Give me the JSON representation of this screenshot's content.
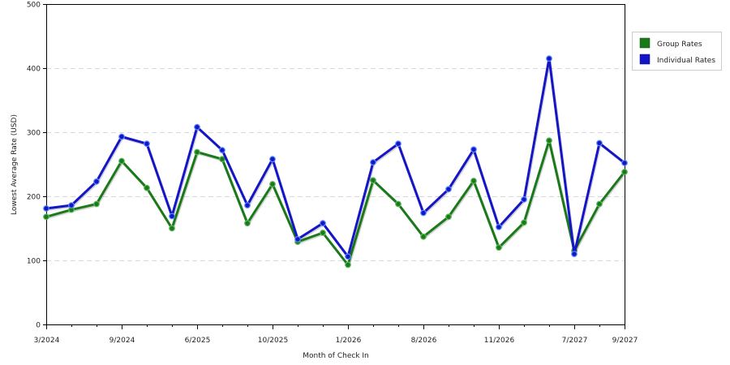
{
  "chart_data": {
    "type": "line",
    "xlabel": "Month of Check In",
    "ylabel": "Lowest Average Rate (USD)",
    "ylim": [
      0,
      500
    ],
    "yticks": [
      0,
      100,
      200,
      300,
      400,
      500
    ],
    "x_tick_labels": [
      {
        "label": "3/2024",
        "index": 0
      },
      {
        "label": "9/2024",
        "index": 3
      },
      {
        "label": "6/2025",
        "index": 6
      },
      {
        "label": "10/2025",
        "index": 9
      },
      {
        "label": "1/2026",
        "index": 12
      },
      {
        "label": "8/2026",
        "index": 15
      },
      {
        "label": "11/2026",
        "index": 18
      },
      {
        "label": "7/2027",
        "index": 21
      },
      {
        "label": "9/2027",
        "index": 23
      }
    ],
    "grid": "horizontal-dashed",
    "legend_position": "right",
    "series": [
      {
        "name": "Group Rates",
        "color": "#1a7a1a",
        "values": [
          168,
          179,
          188,
          255,
          213,
          150,
          269,
          258,
          158,
          219,
          129,
          143,
          93,
          225,
          188,
          137,
          168,
          224,
          120,
          159,
          287,
          115,
          188,
          238
        ]
      },
      {
        "name": "Individual Rates",
        "color": "#1515c8",
        "values": [
          181,
          186,
          223,
          293,
          282,
          169,
          308,
          272,
          186,
          258,
          133,
          158,
          106,
          253,
          282,
          174,
          211,
          273,
          152,
          195,
          415,
          110,
          283,
          252
        ]
      }
    ]
  }
}
